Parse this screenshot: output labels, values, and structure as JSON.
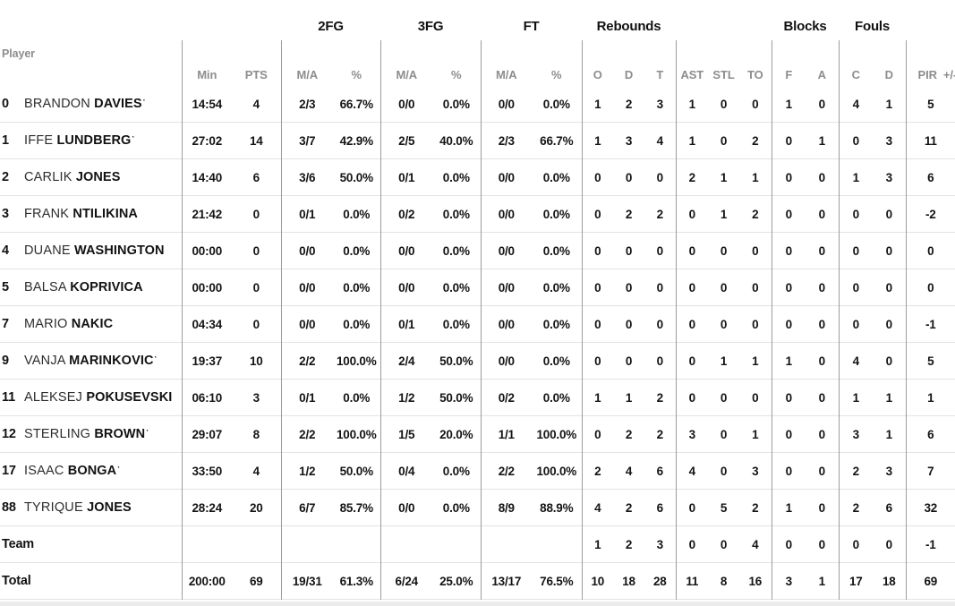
{
  "colors": {
    "text_black": "#141414",
    "text_gray": "#8d8d8d",
    "divider_vertical": "#9c9c9c",
    "divider_horizontal": "#e3e3e3",
    "bottom_band": "#ebebeb",
    "background": "#ffffff"
  },
  "table": {
    "group_headers": {
      "fg2": "2FG",
      "fg3": "3FG",
      "ft": "FT",
      "rebounds": "Rebounds",
      "blocks": "Blocks",
      "fouls": "Fouls"
    },
    "sub_headers": {
      "player": "Player",
      "min": "Min",
      "pts": "PTS",
      "ma": "M/A",
      "pct": "%",
      "reb_o": "O",
      "reb_d": "D",
      "reb_t": "T",
      "ast": "AST",
      "stl": "STL",
      "to": "TO",
      "blk_f": "F",
      "blk_a": "A",
      "foul_c": "C",
      "foul_d": "D",
      "pir": "PIR",
      "plus_minus": "+/-"
    },
    "starter_marker": "·",
    "rows": [
      {
        "number": "0",
        "first": "BRANDON",
        "last": "DAVIES",
        "starter": true,
        "is_summary": false,
        "min": "14:54",
        "pts": "4",
        "fg2_ma": "2/3",
        "fg2_pct": "66.7%",
        "fg3_ma": "0/0",
        "fg3_pct": "0.0%",
        "ft_ma": "0/0",
        "ft_pct": "0.0%",
        "reb_o": "1",
        "reb_d": "2",
        "reb_t": "3",
        "ast": "1",
        "stl": "0",
        "to": "0",
        "blk_f": "1",
        "blk_a": "0",
        "foul_c": "4",
        "foul_d": "1",
        "pir": "5"
      },
      {
        "number": "1",
        "first": "IFFE",
        "last": "LUNDBERG",
        "starter": true,
        "is_summary": false,
        "min": "27:02",
        "pts": "14",
        "fg2_ma": "3/7",
        "fg2_pct": "42.9%",
        "fg3_ma": "2/5",
        "fg3_pct": "40.0%",
        "ft_ma": "2/3",
        "ft_pct": "66.7%",
        "reb_o": "1",
        "reb_d": "3",
        "reb_t": "4",
        "ast": "1",
        "stl": "0",
        "to": "2",
        "blk_f": "0",
        "blk_a": "1",
        "foul_c": "0",
        "foul_d": "3",
        "pir": "11"
      },
      {
        "number": "2",
        "first": "CARLIK",
        "last": "JONES",
        "starter": false,
        "is_summary": false,
        "min": "14:40",
        "pts": "6",
        "fg2_ma": "3/6",
        "fg2_pct": "50.0%",
        "fg3_ma": "0/1",
        "fg3_pct": "0.0%",
        "ft_ma": "0/0",
        "ft_pct": "0.0%",
        "reb_o": "0",
        "reb_d": "0",
        "reb_t": "0",
        "ast": "2",
        "stl": "1",
        "to": "1",
        "blk_f": "0",
        "blk_a": "0",
        "foul_c": "1",
        "foul_d": "3",
        "pir": "6"
      },
      {
        "number": "3",
        "first": "FRANK",
        "last": "NTILIKINA",
        "starter": false,
        "is_summary": false,
        "min": "21:42",
        "pts": "0",
        "fg2_ma": "0/1",
        "fg2_pct": "0.0%",
        "fg3_ma": "0/2",
        "fg3_pct": "0.0%",
        "ft_ma": "0/0",
        "ft_pct": "0.0%",
        "reb_o": "0",
        "reb_d": "2",
        "reb_t": "2",
        "ast": "0",
        "stl": "1",
        "to": "2",
        "blk_f": "0",
        "blk_a": "0",
        "foul_c": "0",
        "foul_d": "0",
        "pir": "-2"
      },
      {
        "number": "4",
        "first": "DUANE",
        "last": "WASHINGTON",
        "starter": false,
        "is_summary": false,
        "min": "00:00",
        "pts": "0",
        "fg2_ma": "0/0",
        "fg2_pct": "0.0%",
        "fg3_ma": "0/0",
        "fg3_pct": "0.0%",
        "ft_ma": "0/0",
        "ft_pct": "0.0%",
        "reb_o": "0",
        "reb_d": "0",
        "reb_t": "0",
        "ast": "0",
        "stl": "0",
        "to": "0",
        "blk_f": "0",
        "blk_a": "0",
        "foul_c": "0",
        "foul_d": "0",
        "pir": "0"
      },
      {
        "number": "5",
        "first": "BALSA",
        "last": "KOPRIVICA",
        "starter": false,
        "is_summary": false,
        "min": "00:00",
        "pts": "0",
        "fg2_ma": "0/0",
        "fg2_pct": "0.0%",
        "fg3_ma": "0/0",
        "fg3_pct": "0.0%",
        "ft_ma": "0/0",
        "ft_pct": "0.0%",
        "reb_o": "0",
        "reb_d": "0",
        "reb_t": "0",
        "ast": "0",
        "stl": "0",
        "to": "0",
        "blk_f": "0",
        "blk_a": "0",
        "foul_c": "0",
        "foul_d": "0",
        "pir": "0"
      },
      {
        "number": "7",
        "first": "MARIO",
        "last": "NAKIC",
        "starter": false,
        "is_summary": false,
        "min": "04:34",
        "pts": "0",
        "fg2_ma": "0/0",
        "fg2_pct": "0.0%",
        "fg3_ma": "0/1",
        "fg3_pct": "0.0%",
        "ft_ma": "0/0",
        "ft_pct": "0.0%",
        "reb_o": "0",
        "reb_d": "0",
        "reb_t": "0",
        "ast": "0",
        "stl": "0",
        "to": "0",
        "blk_f": "0",
        "blk_a": "0",
        "foul_c": "0",
        "foul_d": "0",
        "pir": "-1"
      },
      {
        "number": "9",
        "first": "VANJA",
        "last": "MARINKOVIC",
        "starter": true,
        "is_summary": false,
        "min": "19:37",
        "pts": "10",
        "fg2_ma": "2/2",
        "fg2_pct": "100.0%",
        "fg3_ma": "2/4",
        "fg3_pct": "50.0%",
        "ft_ma": "0/0",
        "ft_pct": "0.0%",
        "reb_o": "0",
        "reb_d": "0",
        "reb_t": "0",
        "ast": "0",
        "stl": "1",
        "to": "1",
        "blk_f": "1",
        "blk_a": "0",
        "foul_c": "4",
        "foul_d": "0",
        "pir": "5"
      },
      {
        "number": "11",
        "first": "ALEKSEJ",
        "last": "POKUSEVSKI",
        "starter": false,
        "is_summary": false,
        "min": "06:10",
        "pts": "3",
        "fg2_ma": "0/1",
        "fg2_pct": "0.0%",
        "fg3_ma": "1/2",
        "fg3_pct": "50.0%",
        "ft_ma": "0/2",
        "ft_pct": "0.0%",
        "reb_o": "1",
        "reb_d": "1",
        "reb_t": "2",
        "ast": "0",
        "stl": "0",
        "to": "0",
        "blk_f": "0",
        "blk_a": "0",
        "foul_c": "1",
        "foul_d": "1",
        "pir": "1"
      },
      {
        "number": "12",
        "first": "STERLING",
        "last": "BROWN",
        "starter": true,
        "is_summary": false,
        "min": "29:07",
        "pts": "8",
        "fg2_ma": "2/2",
        "fg2_pct": "100.0%",
        "fg3_ma": "1/5",
        "fg3_pct": "20.0%",
        "ft_ma": "1/1",
        "ft_pct": "100.0%",
        "reb_o": "0",
        "reb_d": "2",
        "reb_t": "2",
        "ast": "3",
        "stl": "0",
        "to": "1",
        "blk_f": "0",
        "blk_a": "0",
        "foul_c": "3",
        "foul_d": "1",
        "pir": "6"
      },
      {
        "number": "17",
        "first": "ISAAC",
        "last": "BONGA",
        "starter": true,
        "is_summary": false,
        "min": "33:50",
        "pts": "4",
        "fg2_ma": "1/2",
        "fg2_pct": "50.0%",
        "fg3_ma": "0/4",
        "fg3_pct": "0.0%",
        "ft_ma": "2/2",
        "ft_pct": "100.0%",
        "reb_o": "2",
        "reb_d": "4",
        "reb_t": "6",
        "ast": "4",
        "stl": "0",
        "to": "3",
        "blk_f": "0",
        "blk_a": "0",
        "foul_c": "2",
        "foul_d": "3",
        "pir": "7"
      },
      {
        "number": "88",
        "first": "TYRIQUE",
        "last": "JONES",
        "starter": false,
        "is_summary": false,
        "min": "28:24",
        "pts": "20",
        "fg2_ma": "6/7",
        "fg2_pct": "85.7%",
        "fg3_ma": "0/0",
        "fg3_pct": "0.0%",
        "ft_ma": "8/9",
        "ft_pct": "88.9%",
        "reb_o": "4",
        "reb_d": "2",
        "reb_t": "6",
        "ast": "0",
        "stl": "5",
        "to": "2",
        "blk_f": "1",
        "blk_a": "0",
        "foul_c": "2",
        "foul_d": "6",
        "pir": "32"
      },
      {
        "number": "",
        "first": "",
        "last": "Team",
        "starter": false,
        "is_summary": true,
        "min": "",
        "pts": "",
        "fg2_ma": "",
        "fg2_pct": "",
        "fg3_ma": "",
        "fg3_pct": "",
        "ft_ma": "",
        "ft_pct": "",
        "reb_o": "1",
        "reb_d": "2",
        "reb_t": "3",
        "ast": "0",
        "stl": "0",
        "to": "4",
        "blk_f": "0",
        "blk_a": "0",
        "foul_c": "0",
        "foul_d": "0",
        "pir": "-1"
      },
      {
        "number": "",
        "first": "",
        "last": "Total",
        "starter": false,
        "is_summary": true,
        "min": "200:00",
        "pts": "69",
        "fg2_ma": "19/31",
        "fg2_pct": "61.3%",
        "fg3_ma": "6/24",
        "fg3_pct": "25.0%",
        "ft_ma": "13/17",
        "ft_pct": "76.5%",
        "reb_o": "10",
        "reb_d": "18",
        "reb_t": "28",
        "ast": "11",
        "stl": "8",
        "to": "16",
        "blk_f": "3",
        "blk_a": "1",
        "foul_c": "17",
        "foul_d": "18",
        "pir": "69"
      }
    ]
  }
}
